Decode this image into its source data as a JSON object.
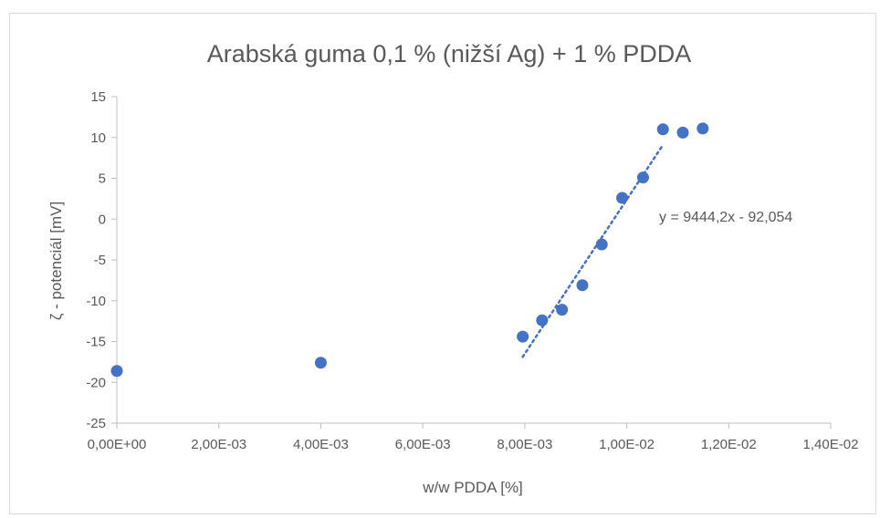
{
  "chart_data": {
    "type": "scatter",
    "title": "Arabská guma 0,1 % (nižší Ag) + 1 % PDDA",
    "xlabel": "w/w PDDA [%]",
    "ylabel": "ζ - potenciál [mV]",
    "xlim": [
      0,
      0.014
    ],
    "ylim": [
      -25,
      15
    ],
    "x_ticks": [
      0,
      0.002,
      0.004,
      0.006,
      0.008,
      0.01,
      0.012,
      0.014
    ],
    "x_tick_labels": [
      "0,00E+00",
      "2,00E-03",
      "4,00E-03",
      "6,00E-03",
      "8,00E-03",
      "1,00E-02",
      "1,20E-02",
      "1,40E-02"
    ],
    "y_ticks": [
      -25,
      -20,
      -15,
      -10,
      -5,
      0,
      5,
      10,
      15
    ],
    "y_tick_labels": [
      "-25",
      "-20",
      "-15",
      "-10",
      "-5",
      "0",
      "5",
      "10",
      "15"
    ],
    "grid": false,
    "legend": "none",
    "series": [
      {
        "color": "#4472c4",
        "points": [
          {
            "x": 0.0,
            "y": -18.6
          },
          {
            "x": 0.004,
            "y": -17.6
          },
          {
            "x": 0.00796,
            "y": -14.4
          },
          {
            "x": 0.00834,
            "y": -12.4
          },
          {
            "x": 0.00873,
            "y": -11.1
          },
          {
            "x": 0.00913,
            "y": -8.1
          },
          {
            "x": 0.00951,
            "y": -3.1
          },
          {
            "x": 0.00991,
            "y": 2.6
          },
          {
            "x": 0.01032,
            "y": 5.1
          },
          {
            "x": 0.01071,
            "y": 11.0
          },
          {
            "x": 0.0111,
            "y": 10.6
          },
          {
            "x": 0.01149,
            "y": 11.1
          }
        ]
      }
    ],
    "trendline": {
      "style": "dotted",
      "color": "#4472c4",
      "slope": 9444.2,
      "intercept": -92.054,
      "x_range": [
        0.00796,
        0.01071
      ],
      "equation_label": "y = 9444,2x - 92,054"
    }
  }
}
